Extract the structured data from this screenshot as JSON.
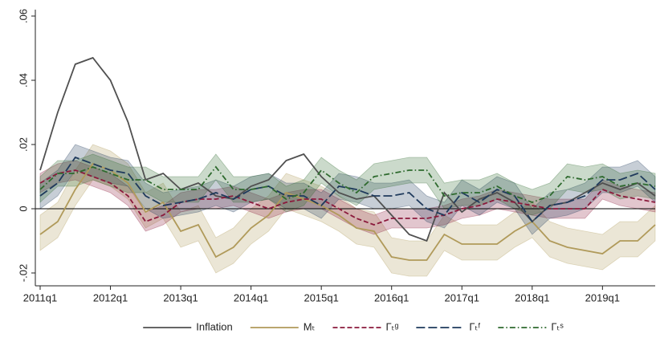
{
  "chart_data": {
    "type": "line",
    "categories": [
      "2011q1",
      null,
      null,
      null,
      "2012q1",
      null,
      null,
      null,
      "2013q1",
      null,
      null,
      null,
      "2014q1",
      null,
      null,
      null,
      "2015q1",
      null,
      null,
      null,
      "2016q1",
      null,
      null,
      null,
      "2017q1",
      null,
      null,
      null,
      "2018q1",
      null,
      null,
      null,
      "2019q1",
      null,
      null,
      null
    ],
    "ylim": [
      -0.024,
      0.062
    ],
    "yticks": [
      {
        "value": -0.02,
        "label": "-.02"
      },
      0,
      {
        "value": 0.02,
        "label": ".02"
      },
      {
        "value": 0.04,
        "label": ".04"
      },
      {
        "value": 0.06,
        "label": ".06"
      }
    ],
    "zero_line": true,
    "legend": "bottom",
    "series": [
      {
        "name": "Inflation",
        "color": "#505050",
        "dash": "solid",
        "values": [
          0.012,
          0.03,
          0.045,
          0.047,
          0.04,
          0.027,
          0.009,
          0.011,
          0.006,
          0.008,
          0.004,
          0.003,
          0.007,
          0.009,
          0.015,
          0.017,
          0.01,
          0.005,
          0.003,
          0.004,
          -0.002,
          -0.008,
          -0.01,
          0.005,
          -0.001,
          0.003,
          0.005,
          0.002,
          -0.004,
          0.001,
          0.002,
          0.005,
          0.008,
          0.006,
          0.008,
          0.004
        ]
      },
      {
        "name": "Mₜ",
        "color": "#b09a5a",
        "dash": "solid",
        "values": [
          -0.008,
          -0.004,
          0.006,
          0.014,
          0.012,
          0.008,
          -0.001,
          0.002,
          -0.007,
          -0.005,
          -0.015,
          -0.012,
          -0.006,
          -0.002,
          0.005,
          0.003,
          0.001,
          -0.002,
          -0.006,
          -0.007,
          -0.015,
          -0.016,
          -0.016,
          -0.008,
          -0.011,
          -0.011,
          -0.011,
          -0.007,
          -0.004,
          -0.01,
          -0.012,
          -0.013,
          -0.014,
          -0.01,
          -0.01,
          -0.005
        ],
        "lower": [
          -0.013,
          -0.009,
          0.001,
          0.009,
          0.007,
          0.003,
          -0.006,
          -0.003,
          -0.012,
          -0.01,
          -0.02,
          -0.017,
          -0.011,
          -0.007,
          0,
          -0.002,
          -0.004,
          -0.007,
          -0.011,
          -0.012,
          -0.02,
          -0.021,
          -0.021,
          -0.013,
          -0.016,
          -0.016,
          -0.016,
          -0.012,
          -0.009,
          -0.015,
          -0.017,
          -0.018,
          -0.019,
          -0.015,
          -0.015,
          -0.01
        ],
        "upper": [
          -0.002,
          0.002,
          0.012,
          0.02,
          0.018,
          0.014,
          0.005,
          0.008,
          -0.001,
          0.001,
          -0.009,
          -0.006,
          0,
          0.004,
          0.011,
          0.009,
          0.007,
          0.004,
          0,
          -0.001,
          -0.009,
          -0.01,
          -0.01,
          -0.002,
          -0.005,
          -0.005,
          -0.005,
          -0.001,
          0.002,
          -0.004,
          -0.006,
          -0.007,
          -0.008,
          -0.004,
          -0.004,
          0.001
        ]
      },
      {
        "name": "Γₜᵍ",
        "color": "#8b1a3c",
        "dash": "dash",
        "values": [
          0.008,
          0.011,
          0.012,
          0.01,
          0.008,
          0.004,
          -0.004,
          -0.002,
          0.002,
          0.003,
          0.003,
          0.004,
          0.002,
          0,
          0.002,
          0.003,
          0.003,
          0,
          -0.003,
          -0.005,
          -0.003,
          -0.003,
          -0.003,
          -0.002,
          0,
          0.001,
          0.003,
          0.002,
          0.001,
          0,
          0,
          0,
          0.006,
          0.004,
          0.003,
          0.002
        ],
        "lower": [
          0.005,
          0.008,
          0.009,
          0.007,
          0.005,
          0.001,
          -0.007,
          -0.005,
          -0.001,
          0,
          0,
          0.001,
          -0.001,
          -0.003,
          -0.001,
          0,
          0,
          -0.003,
          -0.006,
          -0.008,
          -0.006,
          -0.006,
          -0.006,
          -0.005,
          -0.003,
          -0.002,
          0,
          -0.001,
          -0.002,
          -0.003,
          -0.003,
          -0.003,
          0.003,
          0.001,
          0,
          -0.001
        ],
        "upper": [
          0.011,
          0.014,
          0.015,
          0.013,
          0.011,
          0.007,
          -0.001,
          0.001,
          0.005,
          0.006,
          0.006,
          0.007,
          0.005,
          0.003,
          0.005,
          0.006,
          0.006,
          0.003,
          0,
          -0.002,
          0,
          0,
          0,
          0.001,
          0.003,
          0.004,
          0.006,
          0.005,
          0.004,
          0.003,
          0.003,
          0.003,
          0.009,
          0.007,
          0.006,
          0.005
        ]
      },
      {
        "name": "Γₜᶠ",
        "color": "#1f3a5c",
        "dash": "longdash",
        "values": [
          0.004,
          0.008,
          0.016,
          0.014,
          0.012,
          0.011,
          0.004,
          0.001,
          0.002,
          0.003,
          0.005,
          0.003,
          0.006,
          0.007,
          0.004,
          0.004,
          0.001,
          0.007,
          0.006,
          0.004,
          0.004,
          0.005,
          0,
          -0.002,
          0.005,
          0.002,
          0.006,
          0.004,
          -0.004,
          0.001,
          0.002,
          0.004,
          0.009,
          0.009,
          0.011,
          0.006
        ],
        "lower": [
          0,
          0.004,
          0.012,
          0.01,
          0.008,
          0.007,
          0,
          -0.003,
          -0.002,
          -0.001,
          0.001,
          -0.001,
          0.002,
          0.003,
          0,
          0,
          -0.003,
          0.003,
          0.002,
          0,
          0,
          0.001,
          -0.004,
          -0.006,
          0.001,
          -0.002,
          0.002,
          0,
          -0.008,
          -0.003,
          -0.002,
          0,
          0.005,
          0.005,
          0.007,
          0.002
        ],
        "upper": [
          0.008,
          0.012,
          0.02,
          0.018,
          0.016,
          0.015,
          0.008,
          0.005,
          0.006,
          0.007,
          0.009,
          0.007,
          0.01,
          0.011,
          0.008,
          0.008,
          0.005,
          0.011,
          0.01,
          0.008,
          0.008,
          0.009,
          0.004,
          0.002,
          0.009,
          0.006,
          0.01,
          0.008,
          0,
          0.005,
          0.006,
          0.008,
          0.013,
          0.013,
          0.015,
          0.01
        ]
      },
      {
        "name": "Γₜˢ",
        "color": "#2e6a2e",
        "dash": "dashdot",
        "values": [
          0.006,
          0.011,
          0.011,
          0.013,
          0.011,
          0.009,
          0.009,
          0.006,
          0.006,
          0.006,
          0.013,
          0.006,
          0.006,
          0.007,
          0.003,
          0.005,
          0.012,
          0.008,
          0.005,
          0.01,
          0.011,
          0.012,
          0.012,
          0.004,
          0.005,
          0.005,
          0.007,
          0.004,
          0.002,
          0.004,
          0.01,
          0.009,
          0.01,
          0.007,
          0.008,
          0.007
        ],
        "lower": [
          0.002,
          0.007,
          0.007,
          0.009,
          0.007,
          0.005,
          0.005,
          0.002,
          0.002,
          0.002,
          0.009,
          0.002,
          0.002,
          0.003,
          -0.001,
          0.001,
          0.008,
          0.004,
          0.001,
          0.006,
          0.007,
          0.008,
          0.008,
          0,
          0.001,
          0.001,
          0.003,
          0,
          -0.002,
          0,
          0.006,
          0.005,
          0.006,
          0.003,
          0.004,
          0.003
        ],
        "upper": [
          0.01,
          0.015,
          0.015,
          0.017,
          0.015,
          0.013,
          0.013,
          0.01,
          0.01,
          0.01,
          0.017,
          0.01,
          0.01,
          0.011,
          0.007,
          0.009,
          0.016,
          0.012,
          0.009,
          0.014,
          0.015,
          0.016,
          0.016,
          0.008,
          0.009,
          0.009,
          0.011,
          0.008,
          0.006,
          0.008,
          0.014,
          0.013,
          0.014,
          0.011,
          0.012,
          0.011
        ]
      }
    ]
  }
}
